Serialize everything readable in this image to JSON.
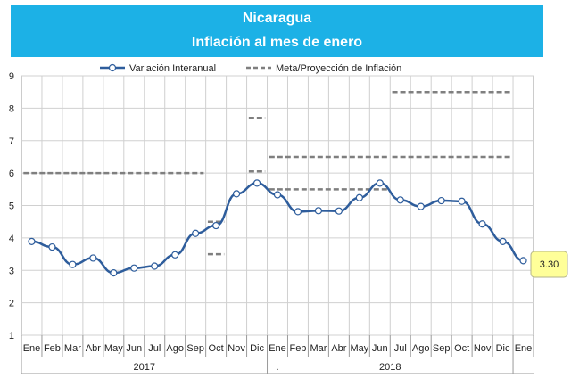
{
  "header": {
    "country": "Nicaragua",
    "subtitle": "Inflación al mes de enero"
  },
  "chart_data": {
    "type": "line",
    "categories": [
      "Ene",
      "Feb",
      "Mar",
      "Abr",
      "May",
      "Jun",
      "Jul",
      "Ago",
      "Sep",
      "Oct",
      "Nov",
      "Dic",
      "Ene",
      "Feb",
      "Mar",
      "Abr",
      "May",
      "Jun",
      "Jul",
      "Ago",
      "Sep",
      "Oct",
      "Nov",
      "Dic",
      "Ene"
    ],
    "year_groups": [
      {
        "label": "2017",
        "start": 0,
        "end": 11
      },
      {
        "label": "2018",
        "start": 12,
        "end": 23
      }
    ],
    "extra_mark": ".",
    "series": [
      {
        "name": "Variación Interanual",
        "values": [
          3.89,
          3.72,
          3.18,
          3.38,
          2.92,
          3.07,
          3.13,
          3.48,
          4.14,
          4.38,
          5.36,
          5.69,
          5.33,
          4.81,
          4.84,
          4.83,
          5.24,
          5.69,
          5.17,
          4.97,
          5.15,
          5.13,
          4.43,
          3.89,
          3.3
        ]
      }
    ],
    "targets_name": "Meta/Proyección de Inflación",
    "targets": [
      {
        "from": 0,
        "to": 8,
        "value": 6.0
      },
      {
        "from": 9,
        "to": 9,
        "value": 4.5
      },
      {
        "from": 9,
        "to": 9,
        "value": 3.5
      },
      {
        "from": 11,
        "to": 11,
        "value": 7.7
      },
      {
        "from": 11,
        "to": 11,
        "value": 6.05
      },
      {
        "from": 12,
        "to": 17,
        "value": 6.5
      },
      {
        "from": 12,
        "to": 17,
        "value": 5.5
      },
      {
        "from": 18,
        "to": 23,
        "value": 8.5
      },
      {
        "from": 18,
        "to": 23,
        "value": 6.5
      }
    ],
    "callout": "3.30",
    "ylim": [
      1,
      9
    ],
    "yticks": [
      1,
      2,
      3,
      4,
      5,
      6,
      7,
      8,
      9
    ],
    "legend_position": "top",
    "grid": true,
    "colors": {
      "line": "#2e5d9c",
      "target": "#7f7f7f",
      "header": "#1cb1e6",
      "callout": "#ffff99"
    }
  }
}
